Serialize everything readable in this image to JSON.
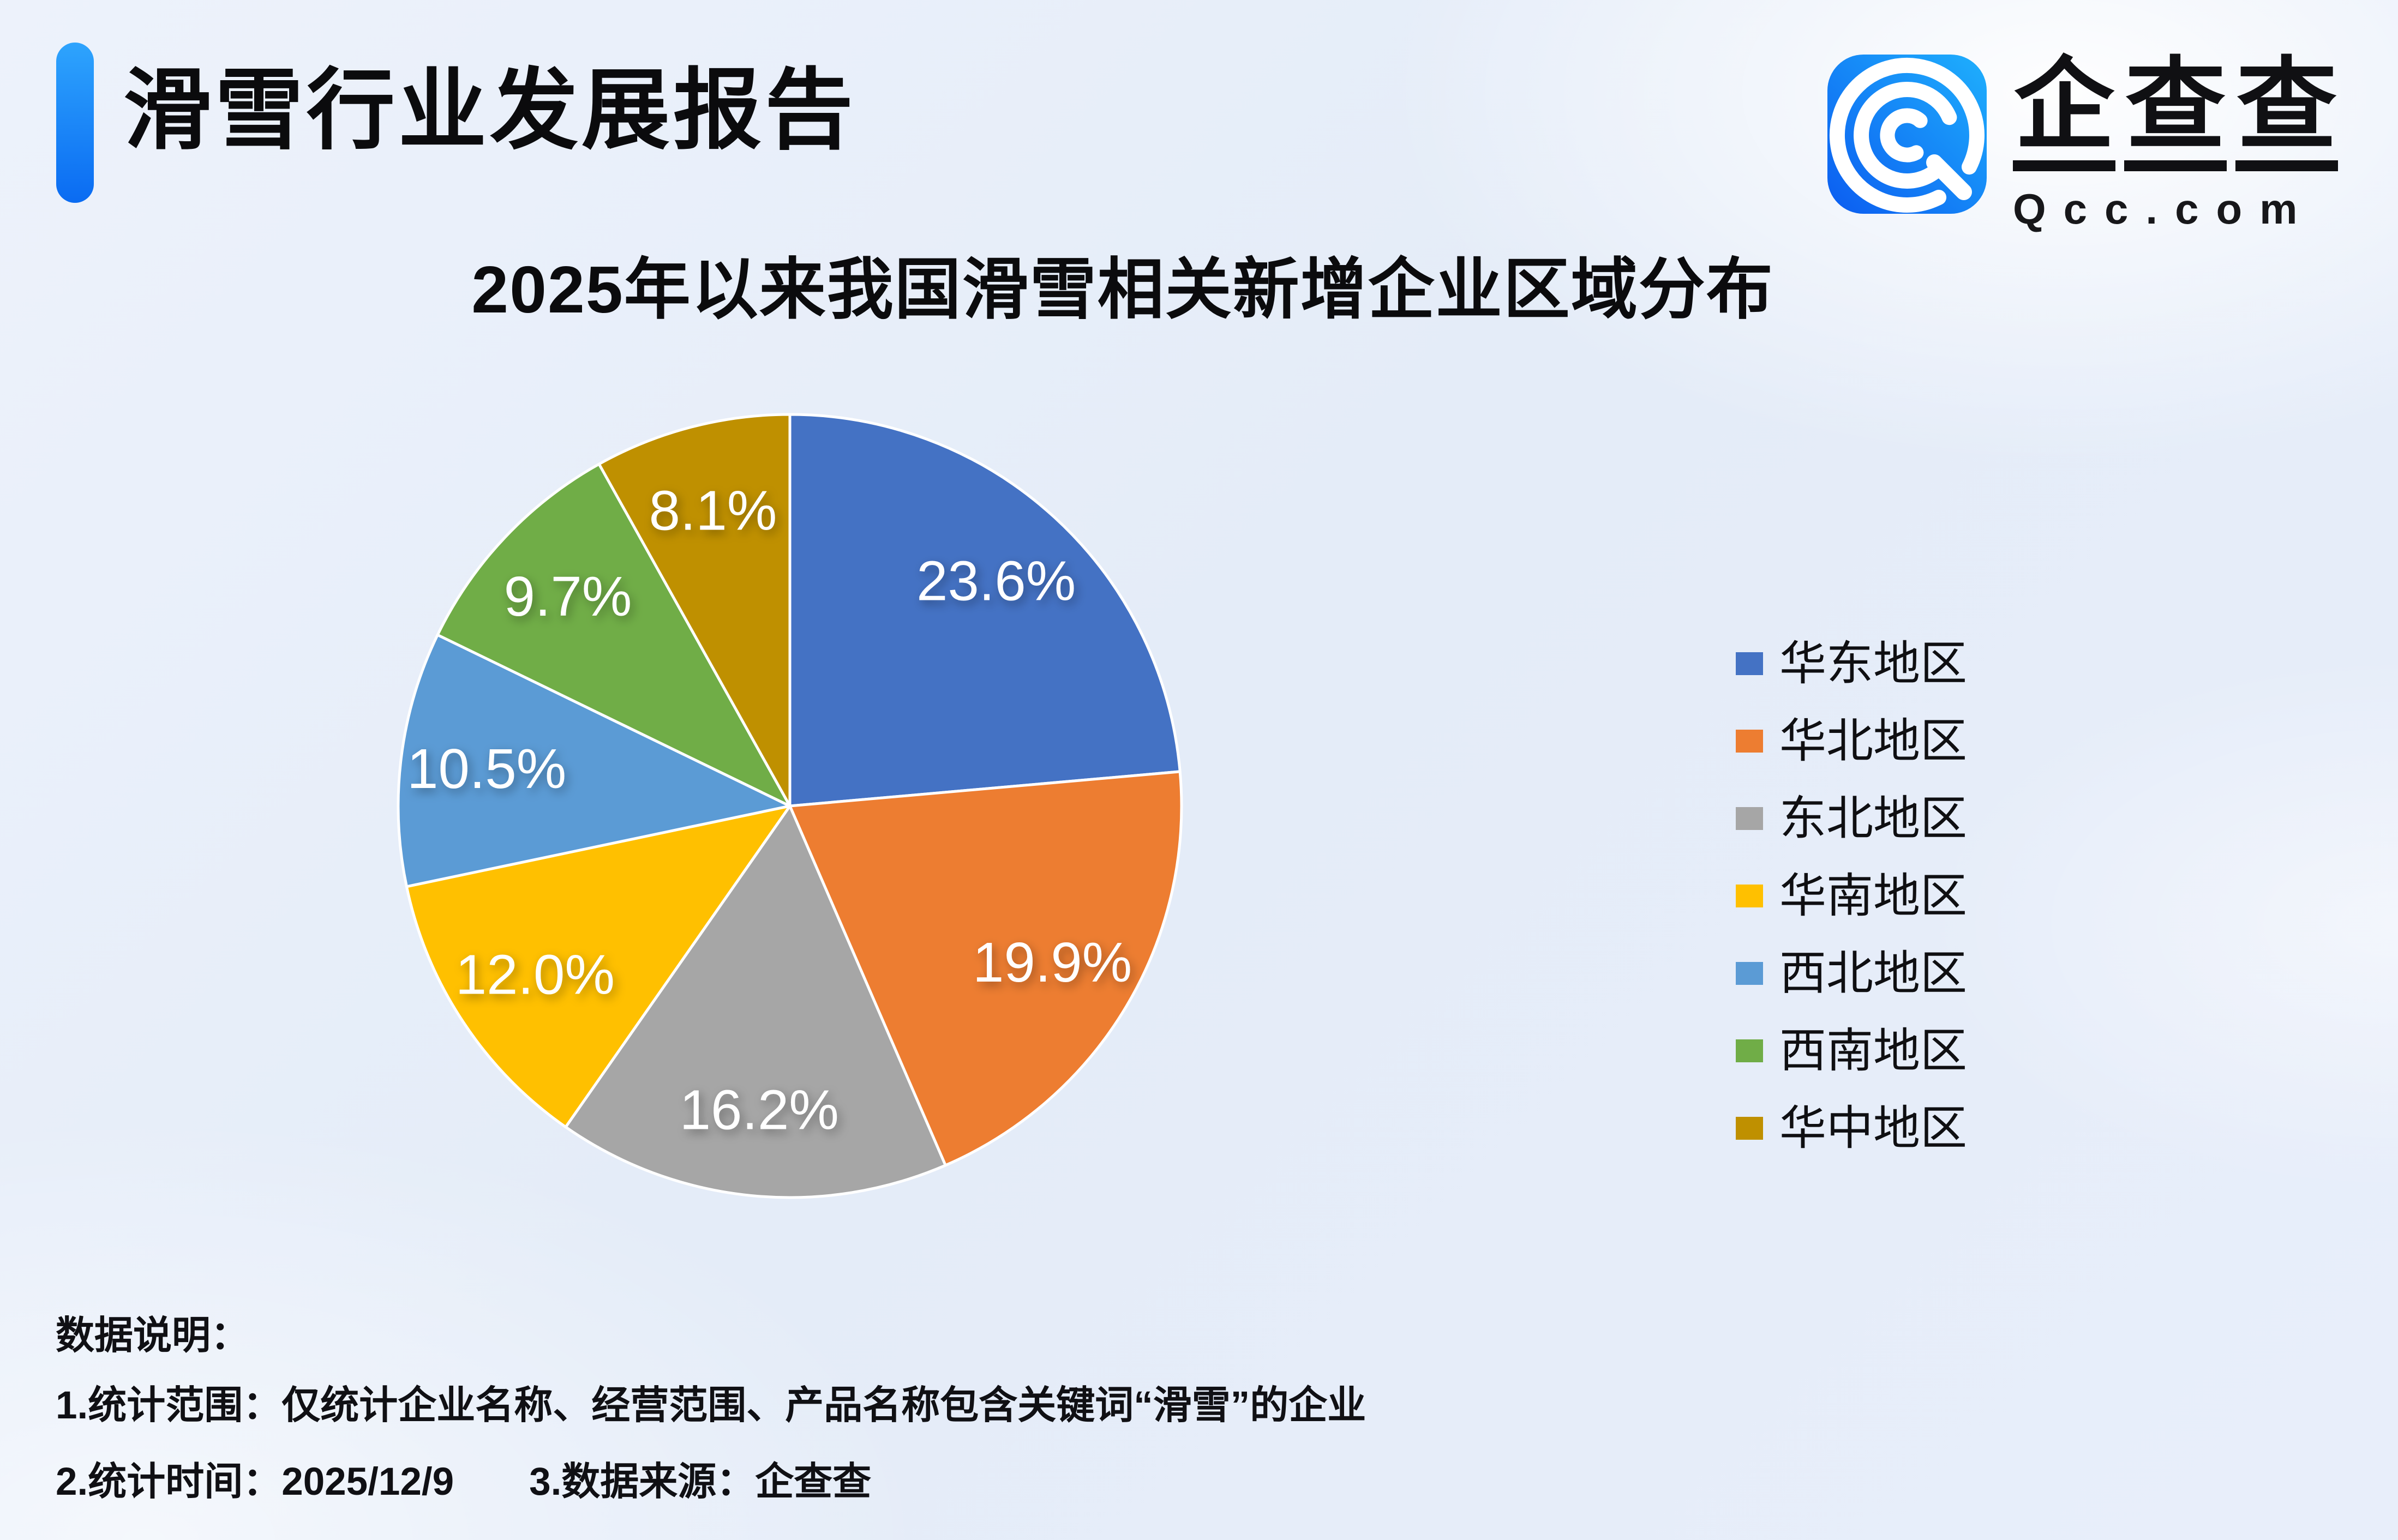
{
  "header": {
    "title": "滑雪行业发展报告",
    "accent_color": "#0a6bf2"
  },
  "logo": {
    "name": "企查查",
    "domain": "Qcc.com",
    "icon": "qcc-spiral-icon",
    "icon_gradient": [
      "#0b5cf0",
      "#1fb0fd"
    ]
  },
  "chart_data": {
    "type": "pie",
    "title": "2025年以来我国滑雪相关新增企业区域分布",
    "series": [
      {
        "name": "华东地区",
        "value": 23.6,
        "label": "23.6%",
        "color": "#4472C4"
      },
      {
        "name": "华北地区",
        "value": 19.9,
        "label": "19.9%",
        "color": "#ED7D31"
      },
      {
        "name": "东北地区",
        "value": 16.2,
        "label": "16.2%",
        "color": "#A6A6A6"
      },
      {
        "name": "华南地区",
        "value": 12.0,
        "label": "12.0%",
        "color": "#FFC000"
      },
      {
        "name": "西北地区",
        "value": 10.5,
        "label": "10.5%",
        "color": "#5B9BD5"
      },
      {
        "name": "西南地区",
        "value": 9.7,
        "label": "9.7%",
        "color": "#70AD47"
      },
      {
        "name": "华中地区",
        "value": 8.1,
        "label": "8.1%",
        "color": "#BF9000"
      }
    ],
    "start_angle_deg": 0,
    "direction": "clockwise",
    "slice_border_color": "#ffffff",
    "label_color": "#ffffff",
    "legend_position": "right"
  },
  "notes": {
    "title": "数据说明：",
    "line1": "1.统计范围：仅统计企业名称、经营范围、产品名称包含关键词“滑雪”的企业",
    "line2_time": "2.统计时间：2025/12/9",
    "line2_source": "3.数据来源：企查查"
  }
}
